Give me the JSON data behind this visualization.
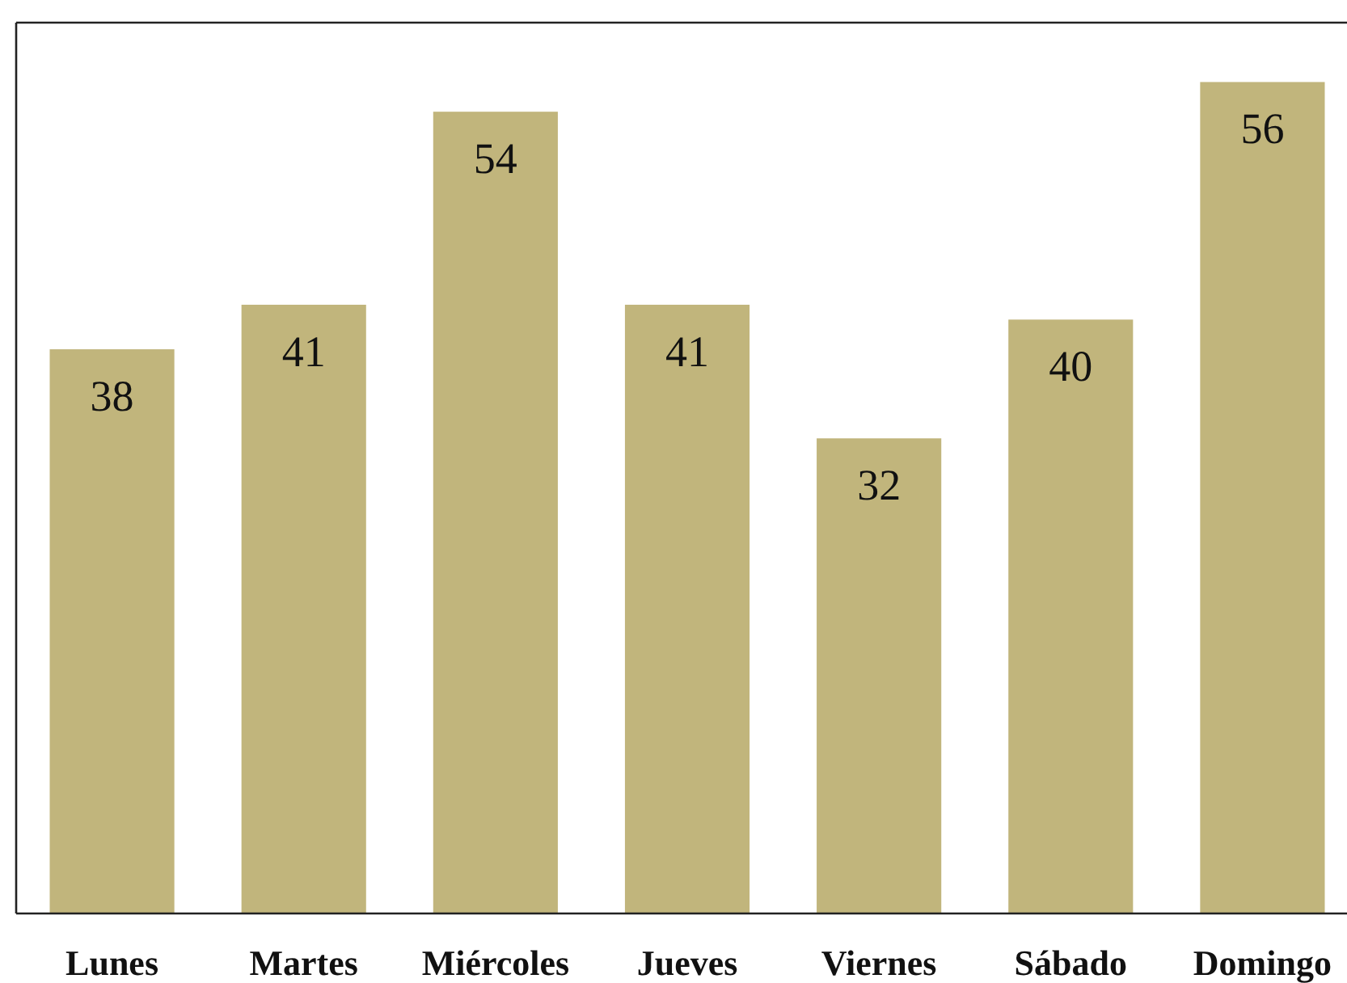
{
  "chart_data": {
    "type": "bar",
    "categories": [
      "Lunes",
      "Martes",
      "Miércoles",
      "Jueves",
      "Viernes",
      "Sábado",
      "Domingo"
    ],
    "values": [
      38,
      41,
      54,
      41,
      32,
      40,
      56
    ],
    "color": "#c1b57c",
    "ylim": [
      0,
      60
    ],
    "data_labels": true,
    "tick_labels": "x"
  }
}
